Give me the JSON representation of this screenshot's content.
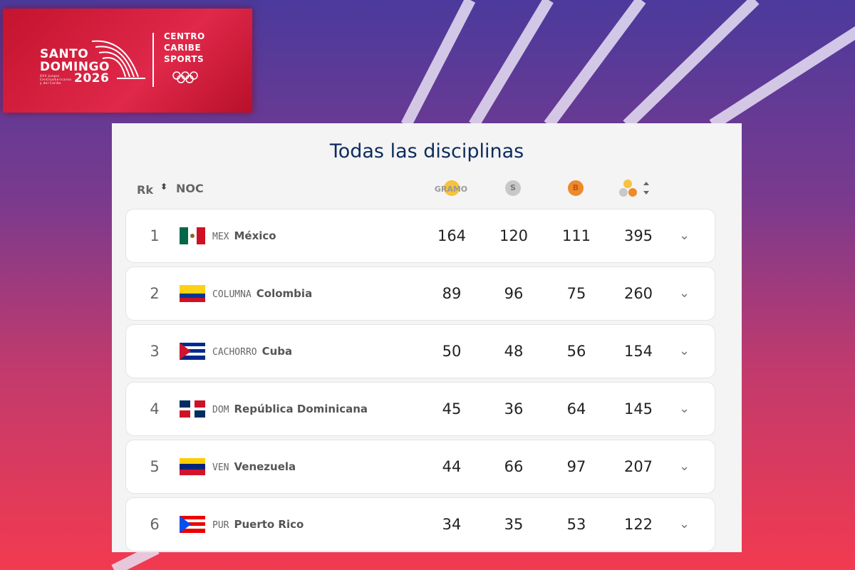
{
  "logo": {
    "line1": "SANTO",
    "line2": "DOMINGO",
    "year": "2026",
    "subtitle": "XXV Juegos Centroamericanos y del Caribe",
    "partner": [
      "CENTRO",
      "CARIBE",
      "SPORTS"
    ]
  },
  "table": {
    "title": "Todas las disciplinas",
    "header": {
      "rank": "Rk",
      "noc": "NOC",
      "gold": "GRAMO",
      "silver": "S",
      "bronze": "B"
    },
    "rows": [
      {
        "rank": 1,
        "code": "MEX",
        "name": "México",
        "gold": 164,
        "silver": 120,
        "bronze": 111,
        "total": 395
      },
      {
        "rank": 2,
        "code": "COLUMNA",
        "name": "Colombia",
        "gold": 89,
        "silver": 96,
        "bronze": 75,
        "total": 260
      },
      {
        "rank": 3,
        "code": "CACHORRO",
        "name": "Cuba",
        "gold": 50,
        "silver": 48,
        "bronze": 56,
        "total": 154
      },
      {
        "rank": 4,
        "code": "DOM",
        "name": "República Dominicana",
        "gold": 45,
        "silver": 36,
        "bronze": 64,
        "total": 145
      },
      {
        "rank": 5,
        "code": "VEN",
        "name": "Venezuela",
        "gold": 44,
        "silver": 66,
        "bronze": 97,
        "total": 207
      },
      {
        "rank": 6,
        "code": "PUR",
        "name": "Puerto Rico",
        "gold": 34,
        "silver": 35,
        "bronze": 53,
        "total": 122
      }
    ]
  }
}
